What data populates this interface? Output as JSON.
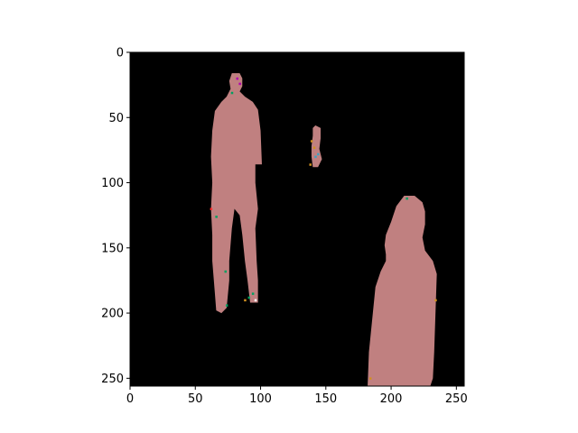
{
  "figure": {
    "image_kind": "segmentation-mask",
    "background_color": "#000000",
    "axes_frame_color": "#000000"
  },
  "chart_data": {
    "type": "heatmap",
    "title": "",
    "xlabel": "",
    "ylabel": "",
    "xlim": [
      0,
      256
    ],
    "ylim": [
      256,
      0
    ],
    "x_ticks": [
      0,
      50,
      100,
      150,
      200,
      250
    ],
    "y_ticks": [
      0,
      50,
      100,
      150,
      200,
      250
    ],
    "x_tick_labels": [
      "0",
      "50",
      "100",
      "150",
      "200",
      "250"
    ],
    "y_tick_labels": [
      "0",
      "50",
      "100",
      "150",
      "200",
      "250"
    ],
    "grid": false,
    "regions": [
      {
        "label": "person-left",
        "color": "#c08080",
        "polygon": [
          [
            78,
            16
          ],
          [
            84,
            16
          ],
          [
            86,
            20
          ],
          [
            86,
            26
          ],
          [
            84,
            30
          ],
          [
            88,
            34
          ],
          [
            94,
            38
          ],
          [
            98,
            44
          ],
          [
            100,
            60
          ],
          [
            101,
            86
          ],
          [
            96,
            86
          ],
          [
            96,
            100
          ],
          [
            98,
            120
          ],
          [
            96,
            135
          ],
          [
            97,
            160
          ],
          [
            98,
            175
          ],
          [
            98,
            192
          ],
          [
            92,
            192
          ],
          [
            90,
            175
          ],
          [
            88,
            160
          ],
          [
            86,
            140
          ],
          [
            84,
            125
          ],
          [
            80,
            120
          ],
          [
            78,
            135
          ],
          [
            76,
            160
          ],
          [
            76,
            175
          ],
          [
            74,
            196
          ],
          [
            70,
            200
          ],
          [
            66,
            198
          ],
          [
            65,
            185
          ],
          [
            63,
            160
          ],
          [
            63,
            140
          ],
          [
            62,
            120
          ],
          [
            63,
            100
          ],
          [
            62,
            80
          ],
          [
            63,
            60
          ],
          [
            65,
            45
          ],
          [
            70,
            38
          ],
          [
            74,
            34
          ],
          [
            77,
            28
          ],
          [
            76,
            22
          ]
        ]
      },
      {
        "label": "person-right",
        "color": "#c08080",
        "polygon": [
          [
            210,
            110
          ],
          [
            218,
            110
          ],
          [
            224,
            115
          ],
          [
            226,
            122
          ],
          [
            226,
            132
          ],
          [
            224,
            142
          ],
          [
            226,
            152
          ],
          [
            232,
            160
          ],
          [
            235,
            170
          ],
          [
            234,
            200
          ],
          [
            233,
            230
          ],
          [
            232,
            250
          ],
          [
            230,
            256
          ],
          [
            182,
            256
          ],
          [
            183,
            230
          ],
          [
            186,
            200
          ],
          [
            188,
            180
          ],
          [
            192,
            168
          ],
          [
            196,
            160
          ],
          [
            196,
            155
          ],
          [
            195,
            148
          ],
          [
            196,
            140
          ],
          [
            200,
            130
          ],
          [
            204,
            118
          ]
        ]
      },
      {
        "label": "small-figure",
        "color": "#c08080",
        "polygon": [
          [
            142,
            56
          ],
          [
            146,
            58
          ],
          [
            146,
            66
          ],
          [
            145,
            74
          ],
          [
            147,
            82
          ],
          [
            144,
            88
          ],
          [
            140,
            88
          ],
          [
            139,
            80
          ],
          [
            139,
            72
          ],
          [
            140,
            64
          ],
          [
            140,
            58
          ]
        ]
      }
    ],
    "specks": [
      {
        "color": "#b000b0",
        "x": 82,
        "y": 20
      },
      {
        "color": "#b000b0",
        "x": 84,
        "y": 24
      },
      {
        "color": "#00a060",
        "x": 78,
        "y": 31
      },
      {
        "color": "#d09020",
        "x": 139,
        "y": 68
      },
      {
        "color": "#d09020",
        "x": 141,
        "y": 73
      },
      {
        "color": "#40a0c0",
        "x": 144,
        "y": 78
      },
      {
        "color": "#40a0c0",
        "x": 142,
        "y": 80
      },
      {
        "color": "#d09020",
        "x": 138,
        "y": 86
      },
      {
        "color": "#00a060",
        "x": 66,
        "y": 126
      },
      {
        "color": "#ff3030",
        "x": 62,
        "y": 120
      },
      {
        "color": "#00a060",
        "x": 73,
        "y": 168
      },
      {
        "color": "#00a060",
        "x": 94,
        "y": 185
      },
      {
        "color": "#00a060",
        "x": 91,
        "y": 188
      },
      {
        "color": "#ffffff",
        "x": 96,
        "y": 190
      },
      {
        "color": "#d09020",
        "x": 88,
        "y": 190
      },
      {
        "color": "#00a060",
        "x": 74,
        "y": 194
      },
      {
        "color": "#d09020",
        "x": 184,
        "y": 250
      },
      {
        "color": "#00a060",
        "x": 212,
        "y": 112
      },
      {
        "color": "#d09020",
        "x": 234,
        "y": 190
      }
    ]
  }
}
